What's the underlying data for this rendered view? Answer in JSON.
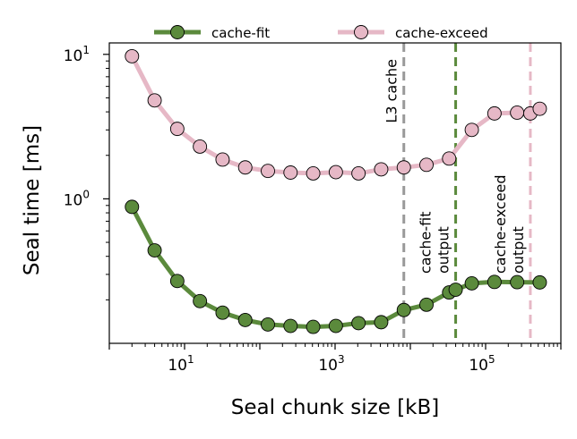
{
  "chart_data": {
    "type": "line",
    "xlabel": "Seal chunk size [kB]",
    "ylabel": "Seal time [ms]",
    "xscale": "log",
    "yscale": "log",
    "xlim": [
      1.0,
      1000000
    ],
    "ylim": [
      0.1,
      12
    ],
    "grid": false,
    "legend": "top-center, above plot, 2 columns",
    "x_ticks": [
      {
        "value": 10,
        "base": "10",
        "exp": "1"
      },
      {
        "value": 1000,
        "base": "10",
        "exp": "3"
      },
      {
        "value": 100000,
        "base": "10",
        "exp": "5"
      }
    ],
    "y_ticks": [
      {
        "value": 1,
        "base": "10",
        "exp": "0"
      },
      {
        "value": 10,
        "base": "10",
        "exp": "1"
      }
    ],
    "x": [
      2,
      4,
      8,
      16,
      32,
      64,
      128,
      256,
      512,
      1024,
      2048,
      4096,
      8192,
      16384,
      32768,
      40000,
      65536,
      131072,
      262144,
      393216,
      524288
    ],
    "series": [
      {
        "name": "cache-fit",
        "color": "#5b8a3c",
        "x": [
          2,
          4,
          8,
          16,
          32,
          64,
          128,
          256,
          512,
          1024,
          2048,
          4096,
          8192,
          16384,
          32768,
          40000,
          65536,
          131072,
          262144,
          524288
        ],
        "values": [
          0.88,
          0.44,
          0.27,
          0.196,
          0.163,
          0.145,
          0.135,
          0.132,
          0.13,
          0.132,
          0.138,
          0.14,
          0.17,
          0.185,
          0.225,
          0.235,
          0.26,
          0.266,
          0.265,
          0.264
        ]
      },
      {
        "name": "cache-exceed",
        "color": "#e6b8c6",
        "x": [
          2,
          4,
          8,
          16,
          32,
          64,
          128,
          256,
          512,
          1024,
          2048,
          4096,
          8192,
          16384,
          32768,
          65536,
          131072,
          262144,
          393216,
          524288
        ],
        "values": [
          9.7,
          4.8,
          3.05,
          2.3,
          1.87,
          1.65,
          1.56,
          1.52,
          1.5,
          1.53,
          1.5,
          1.6,
          1.65,
          1.72,
          1.9,
          3.0,
          3.9,
          3.95,
          3.9,
          4.2
        ]
      }
    ],
    "vlines": [
      {
        "x": 8192,
        "color": "#999999",
        "label_lines": [
          "L3 cache"
        ],
        "side": "left",
        "text_top": true
      },
      {
        "x": 40000,
        "color": "#5b8a3c",
        "label_lines": [
          "cache-fit",
          "output"
        ],
        "side": "left",
        "text_top": false
      },
      {
        "x": 393216,
        "color": "#e6b8c6",
        "label_lines": [
          "cache-exceed",
          "output"
        ],
        "side": "left",
        "text_top": false
      }
    ]
  }
}
